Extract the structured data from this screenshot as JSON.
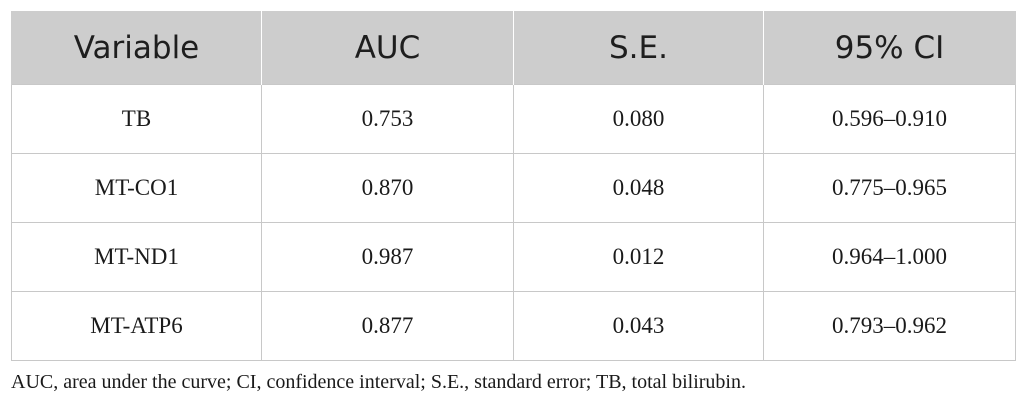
{
  "table": {
    "headers": [
      "Variable",
      "AUC",
      "S.E.",
      "95% CI"
    ],
    "rows": [
      [
        "TB",
        "0.753",
        "0.080",
        "0.596–0.910"
      ],
      [
        "MT-CO1",
        "0.870",
        "0.048",
        "0.775–0.965"
      ],
      [
        "MT-ND1",
        "0.987",
        "0.012",
        "0.964–1.000"
      ],
      [
        "MT-ATP6",
        "0.877",
        "0.043",
        "0.793–0.962"
      ]
    ]
  },
  "footnote": "AUC, area under the curve; CI, confidence interval; S.E., standard error; TB, total bilirubin.",
  "colors": {
    "header_background": "#cdcdcd",
    "border": "#c8c8c8"
  }
}
